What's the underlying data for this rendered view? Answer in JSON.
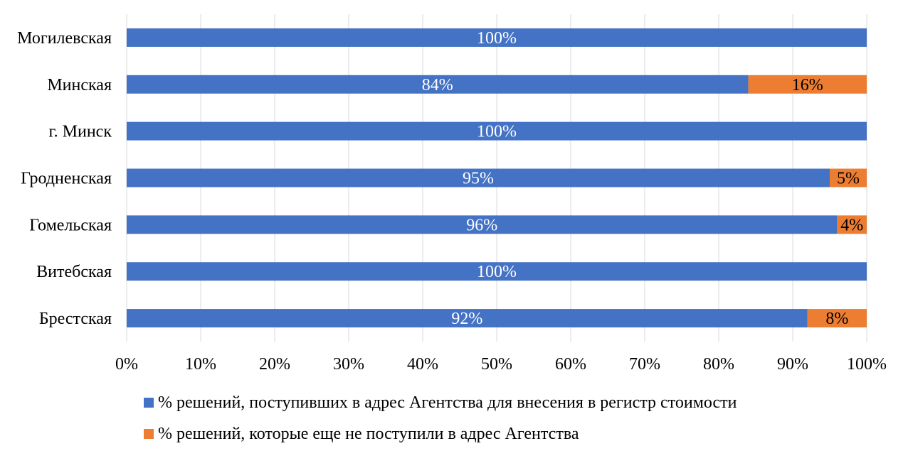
{
  "chart_data": {
    "type": "bar",
    "orientation": "horizontal",
    "stacked": "percent",
    "categories": [
      "Брестская",
      "Витебская",
      "Гомельская",
      "Гродненская",
      "г. Минск",
      "Минская",
      "Могилевская"
    ],
    "series": [
      {
        "name": "% решений, поступивших в адрес Агентства для внесения в регистр стоимости",
        "color": "#4472C4",
        "values": [
          92,
          100,
          96,
          95,
          100,
          84,
          100
        ],
        "labels": [
          "92%",
          "100%",
          "96%",
          "95%",
          "100%",
          "84%",
          "100%"
        ]
      },
      {
        "name": "% решений, которые еще не поступили в адрес Агентства",
        "color": "#ED7D31",
        "values": [
          8,
          0,
          4,
          5,
          0,
          16,
          0
        ],
        "labels": [
          "8%",
          "",
          "4%",
          "5%",
          "",
          "16%",
          ""
        ]
      }
    ],
    "xlim": [
      0,
      100
    ],
    "x_ticks": [
      "0%",
      "10%",
      "20%",
      "30%",
      "40%",
      "50%",
      "60%",
      "70%",
      "80%",
      "90%",
      "100%"
    ],
    "grid": true,
    "legend_position": "bottom",
    "title": "",
    "xlabel": "",
    "ylabel": ""
  }
}
